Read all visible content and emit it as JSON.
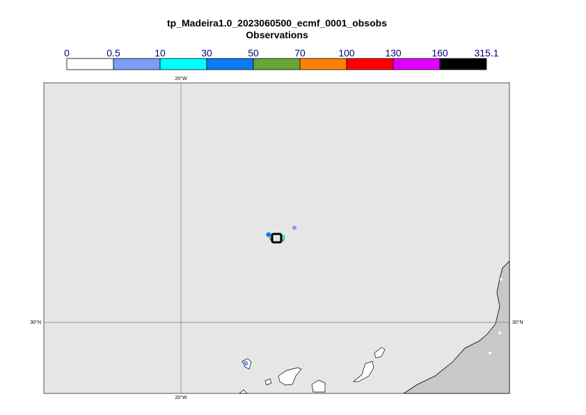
{
  "header": {
    "title": "tp_Madeira1.0_2023060500_ecmf_0001_obsobs",
    "subtitle": "Observations"
  },
  "colorbar": {
    "levels": [
      0,
      0.5,
      10,
      30,
      50,
      70,
      100,
      130,
      160,
      315.1
    ],
    "colors": [
      "#ffffff",
      "#7b9ef6",
      "#00ffff",
      "#0a7cf5",
      "#6aa535",
      "#ff8000",
      "#ff0000",
      "#e000ff",
      "#000000"
    ]
  },
  "map": {
    "meridian_label": "20°W",
    "parallel_label": "30°N"
  }
}
